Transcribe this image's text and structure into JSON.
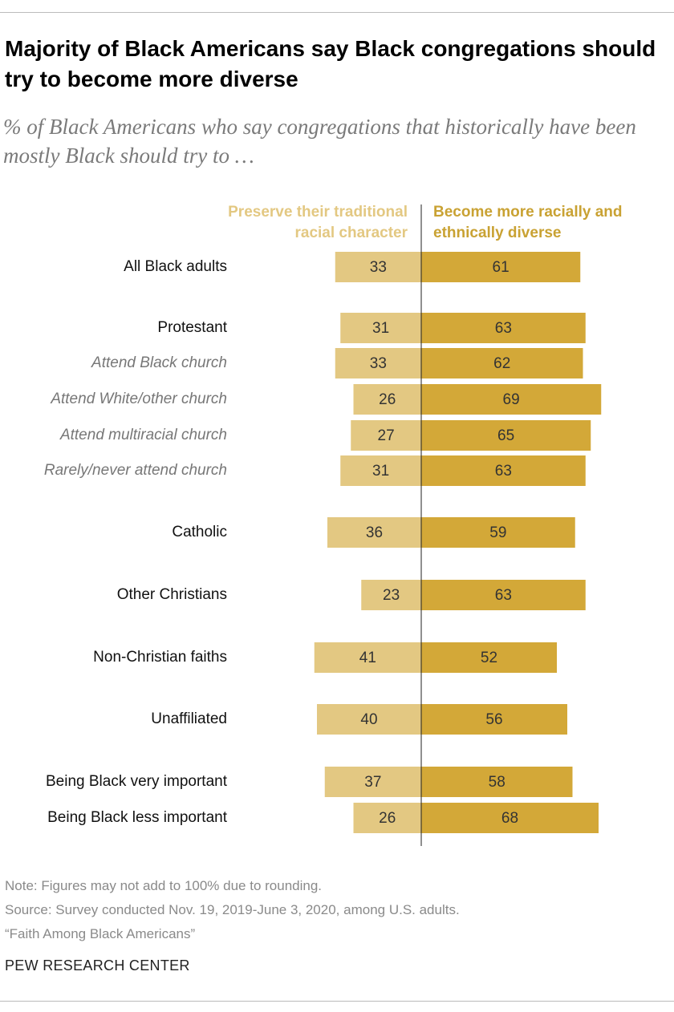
{
  "chart_data": {
    "type": "bar",
    "title": "Majority of Black Americans say Black congregations should try to become more diverse",
    "subtitle": "% of Black Americans who say congregations that historically have been mostly Black should try to …",
    "categories": [
      "All Black adults",
      "Protestant",
      "Attend Black church",
      "Attend White/other church",
      "Attend multiracial church",
      "Rarely/never attend church",
      "Catholic",
      "Other Christians",
      "Non-Christian faiths",
      "Unaffiliated",
      "Being Black very important",
      "Being Black less important"
    ],
    "series": [
      {
        "name": "Preserve their traditional racial character",
        "color": "#e3c882",
        "values": [
          33,
          31,
          33,
          26,
          27,
          31,
          36,
          23,
          41,
          40,
          37,
          26
        ]
      },
      {
        "name": "Become more racially and ethnically diverse",
        "color": "#d3a838",
        "values": [
          61,
          63,
          62,
          69,
          65,
          63,
          59,
          63,
          52,
          56,
          58,
          68
        ]
      }
    ],
    "note": "Note: Figures may not add to 100% due to rounding.",
    "source": [
      "Source: Survey conducted Nov. 19, 2019-June 3, 2020, among U.S. adults.",
      "“Faith Among Black Americans”"
    ],
    "publisher": "PEW RESEARCH CENTER"
  }
}
